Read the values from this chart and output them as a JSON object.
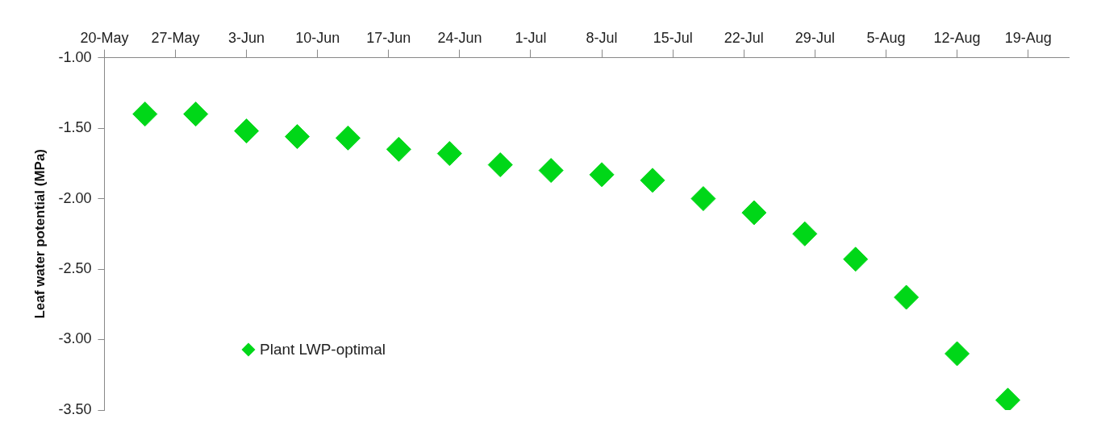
{
  "chart_data": {
    "type": "scatter",
    "ylabel": "Leaf water potential (MPa)",
    "x": [
      "--05-24",
      "--05-29",
      "--06-03",
      "--06-08",
      "--06-13",
      "--06-18",
      "--06-23",
      "--06-28",
      "--07-03",
      "--07-08",
      "--07-13",
      "--07-18",
      "--07-23",
      "--07-28",
      "--08-02",
      "--08-07",
      "--08-12",
      "--08-17"
    ],
    "series": [
      {
        "name": "Plant LWP-optimal",
        "color": "#00d718",
        "values": [
          -1.4,
          -1.4,
          -1.52,
          -1.56,
          -1.57,
          -1.65,
          -1.68,
          -1.76,
          -1.8,
          -1.83,
          -1.87,
          -2.0,
          -2.1,
          -2.25,
          -2.43,
          -2.7,
          -3.1,
          -3.43
        ]
      }
    ],
    "xlim": [
      "--05-20",
      "--08-23"
    ],
    "xticks": [
      {
        "value": "--05-20",
        "label": "20-May"
      },
      {
        "value": "--05-27",
        "label": "27-May"
      },
      {
        "value": "--06-03",
        "label": "3-Jun"
      },
      {
        "value": "--06-10",
        "label": "10-Jun"
      },
      {
        "value": "--06-17",
        "label": "17-Jun"
      },
      {
        "value": "--06-24",
        "label": "24-Jun"
      },
      {
        "value": "--07-01",
        "label": "1-Jul"
      },
      {
        "value": "--07-08",
        "label": "8-Jul"
      },
      {
        "value": "--07-15",
        "label": "15-Jul"
      },
      {
        "value": "--07-22",
        "label": "22-Jul"
      },
      {
        "value": "--07-29",
        "label": "29-Jul"
      },
      {
        "value": "--08-05",
        "label": "5-Aug"
      },
      {
        "value": "--08-12",
        "label": "12-Aug"
      },
      {
        "value": "--08-19",
        "label": "19-Aug"
      }
    ],
    "ylim": [
      -3.5,
      -1
    ],
    "yticks": [
      {
        "value": -1,
        "label": "-1.00"
      },
      {
        "value": -1.5,
        "label": "-1.50"
      },
      {
        "value": -2,
        "label": "-2.00"
      },
      {
        "value": -2.5,
        "label": "-2.50"
      },
      {
        "value": -3,
        "label": "-3.00"
      },
      {
        "value": -3.5,
        "label": "-3.50"
      }
    ],
    "legend": "bottom left",
    "marker": "diamond",
    "grid": false
  }
}
